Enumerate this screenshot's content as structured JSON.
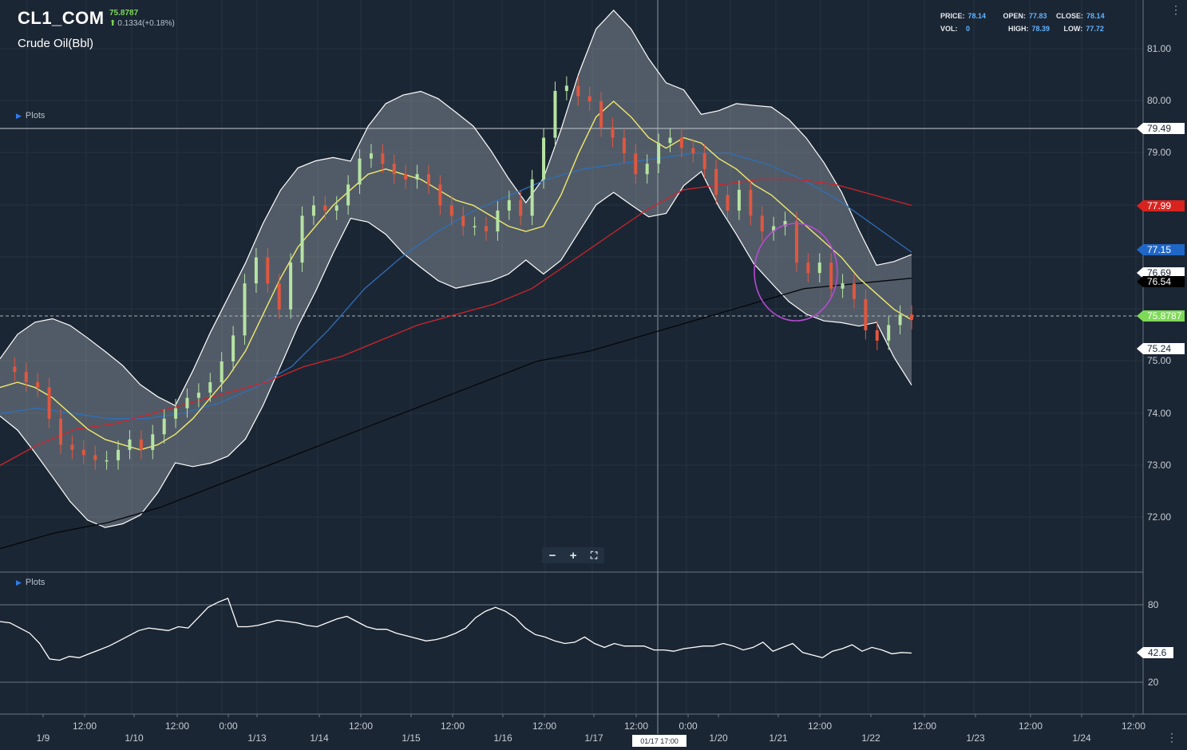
{
  "header": {
    "symbol": "CL1_COM",
    "last_price": "75.8787",
    "change": "0.1334(+0.18%)",
    "description": "Crude Oil(Bbl)"
  },
  "stats": {
    "price_label": "PRICE:",
    "price": "78.14",
    "open_label": "OPEN:",
    "open": "77.83",
    "close_label": "CLOSE:",
    "close": "78.14",
    "vol_label": "VOL:",
    "vol": "0",
    "high_label": "HIGH:",
    "high": "78.39",
    "low_label": "LOW:",
    "low": "77.72"
  },
  "plots_label": "Plots",
  "zoom": {
    "minus": "−",
    "plus": "+",
    "fit": "⛶"
  },
  "crosshair_time": "01/17 17:00",
  "colors": {
    "background": "#1b2634",
    "up_candle": "#b6e3a2",
    "down_candle": "#e0573f",
    "bollinger_mid": "#f2e96b",
    "ma_blue": "#2f6fb8",
    "ma_red": "#d0242b",
    "ma_black": "#05070a",
    "highlight_circle": "#b54bd1"
  },
  "chart_data": [
    {
      "type": "line",
      "name_shown": "CL1_COM",
      "ylim": [
        71.0,
        81.8
      ],
      "y_ticks": [
        "81.00",
        "80.00",
        "79.00",
        "77.99",
        "77.15",
        "76.69",
        "76.54",
        "75.8787",
        "75.24",
        "75.00",
        "74.00",
        "73.00",
        "72.00"
      ],
      "price_badges": [
        {
          "value": "79.49",
          "bg": "#ffffff",
          "fg": "#1b2634"
        },
        {
          "value": "77.99",
          "bg": "#d8231f",
          "fg": "#ffffff"
        },
        {
          "value": "77.15",
          "bg": "#1f67c7",
          "fg": "#ffffff"
        },
        {
          "value": "76.69",
          "bg": "#ffffff",
          "fg": "#1b2634"
        },
        {
          "value": "76.54",
          "bg": "#000000",
          "fg": "#ffffff"
        },
        {
          "value": "75.8787",
          "bg": "#7ed957",
          "fg": "#ffffff"
        },
        {
          "value": "75.24",
          "bg": "#ffffff",
          "fg": "#1b2634"
        }
      ],
      "x_ticks": [
        "1/9",
        "12:00",
        "1/10",
        "12:00",
        "0:00",
        "1/13",
        "1/14",
        "12:00",
        "1/15",
        "12:00",
        "1/16",
        "12:00",
        "1/17",
        "12:00",
        "0:00",
        "1/20",
        "1/21",
        "12:00",
        "1/22",
        "12:00",
        "1/23",
        "12:00",
        "1/24",
        "12:00"
      ],
      "closes": [
        74.9,
        74.8,
        74.6,
        74.5,
        73.9,
        73.4,
        73.3,
        73.2,
        73.1,
        73.1,
        73.3,
        73.5,
        73.3,
        73.6,
        73.9,
        74.1,
        74.3,
        74.4,
        74.6,
        75.0,
        75.5,
        76.5,
        77.0,
        76.5,
        76.0,
        76.9,
        77.8,
        78.0,
        77.9,
        78.0,
        78.4,
        78.9,
        79.0,
        78.8,
        78.6,
        78.5,
        78.6,
        78.4,
        78.0,
        77.8,
        77.6,
        77.6,
        77.5,
        77.9,
        78.1,
        77.8,
        78.5,
        79.3,
        80.2,
        80.3,
        80.1,
        80.0,
        79.5,
        79.3,
        79.0,
        78.6,
        78.8,
        79.2,
        79.3,
        79.1,
        79.0,
        78.7,
        78.2,
        77.9,
        78.3,
        77.8,
        77.5,
        77.6,
        77.7,
        76.9,
        76.7,
        76.9,
        76.4,
        76.5,
        76.2,
        75.6,
        75.4,
        75.7,
        75.9,
        75.8
      ],
      "bb_mid": [
        74.5,
        74.6,
        74.5,
        74.3,
        74.0,
        73.7,
        73.5,
        73.4,
        73.3,
        73.4,
        73.6,
        73.9,
        74.3,
        74.7,
        75.2,
        75.9,
        76.6,
        77.2,
        77.6,
        78.0,
        78.3,
        78.6,
        78.7,
        78.6,
        78.5,
        78.3,
        78.1,
        78.0,
        77.8,
        77.6,
        77.5,
        77.6,
        78.2,
        79.0,
        79.7,
        80.0,
        79.7,
        79.3,
        79.1,
        79.3,
        79.2,
        78.9,
        78.7,
        78.4,
        78.2,
        77.9,
        77.6,
        77.3,
        77.0,
        76.6,
        76.3,
        76.0,
        75.8
      ],
      "ma_blue": [
        74.0,
        74.1,
        74.0,
        73.9,
        73.9,
        74.0,
        74.2,
        74.5,
        74.9,
        75.6,
        76.4,
        77.0,
        77.5,
        77.9,
        78.2,
        78.5,
        78.7,
        78.8,
        78.9,
        79.0,
        79.0,
        78.8,
        78.5,
        78.1,
        77.6,
        77.1
      ],
      "ma_red": [
        73.0,
        73.4,
        73.7,
        73.8,
        74.0,
        74.2,
        74.4,
        74.6,
        74.9,
        75.1,
        75.4,
        75.7,
        75.9,
        76.1,
        76.4,
        76.9,
        77.4,
        77.9,
        78.3,
        78.4,
        78.5,
        78.5,
        78.4,
        78.2,
        78.0
      ],
      "ma_black": [
        71.4,
        71.7,
        71.9,
        72.2,
        72.6,
        73.0,
        73.4,
        73.8,
        74.2,
        74.6,
        75.0,
        75.2,
        75.5,
        75.8,
        76.1,
        76.4,
        76.5,
        76.6
      ]
    },
    {
      "type": "line",
      "ylim": [
        0,
        100
      ],
      "y_ticks": [
        "80",
        "20"
      ],
      "current_value": "42.6",
      "values": [
        67,
        66,
        62,
        58,
        50,
        38,
        37,
        40,
        39,
        42,
        45,
        48,
        52,
        56,
        60,
        62,
        61,
        60,
        63,
        62,
        70,
        78,
        82,
        85,
        63,
        63,
        64,
        66,
        68,
        67,
        66,
        64,
        63,
        66,
        69,
        71,
        67,
        63,
        61,
        61,
        58,
        56,
        54,
        52,
        53,
        55,
        58,
        62,
        70,
        75,
        78,
        75,
        70,
        62,
        57,
        55,
        52,
        50,
        51,
        55,
        50,
        47,
        50,
        48,
        48,
        48,
        45,
        45,
        44,
        46,
        47,
        48,
        48,
        50,
        48,
        45,
        47,
        51,
        44,
        47,
        50,
        43,
        41,
        39,
        44,
        46,
        49,
        44,
        47,
        45,
        42,
        43,
        42.6
      ]
    }
  ]
}
